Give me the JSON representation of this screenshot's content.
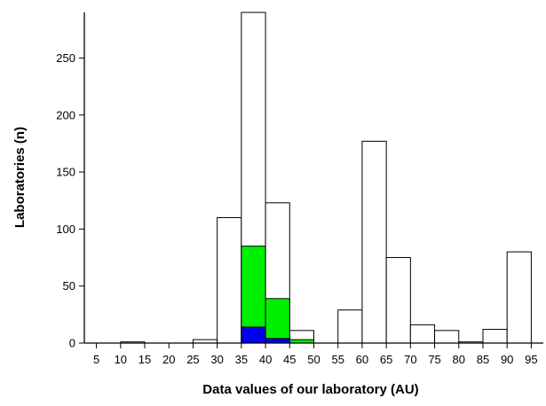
{
  "chart_data": {
    "type": "bar",
    "title": "",
    "xlabel": "Data values of our laboratory (AU)",
    "ylabel": "Laboratories (n)",
    "xlim": [
      2.5,
      97.5
    ],
    "ylim": [
      0,
      290
    ],
    "x_ticks": [
      5,
      10,
      15,
      20,
      25,
      30,
      35,
      40,
      45,
      50,
      55,
      60,
      65,
      70,
      75,
      80,
      85,
      90,
      95
    ],
    "y_ticks": [
      0,
      50,
      100,
      150,
      200,
      250
    ],
    "bin_width": 5,
    "bin_starts": [
      10,
      25,
      30,
      35,
      40,
      45,
      55,
      60,
      65,
      70,
      75,
      80,
      85,
      90
    ],
    "series": [
      {
        "fill": "#ffffff",
        "values": [
          1,
          3,
          110,
          290,
          123,
          11,
          29,
          177,
          75,
          16,
          11,
          1,
          12,
          80
        ]
      },
      {
        "fill": "#00ee00",
        "values": [
          0,
          0,
          0,
          85,
          39,
          3,
          0,
          0,
          0,
          0,
          0,
          0,
          0,
          0
        ]
      },
      {
        "fill": "#0000ee",
        "values": [
          0,
          0,
          0,
          14,
          4,
          0,
          0,
          0,
          0,
          0,
          0,
          0,
          0,
          0
        ]
      }
    ],
    "grid": false
  }
}
